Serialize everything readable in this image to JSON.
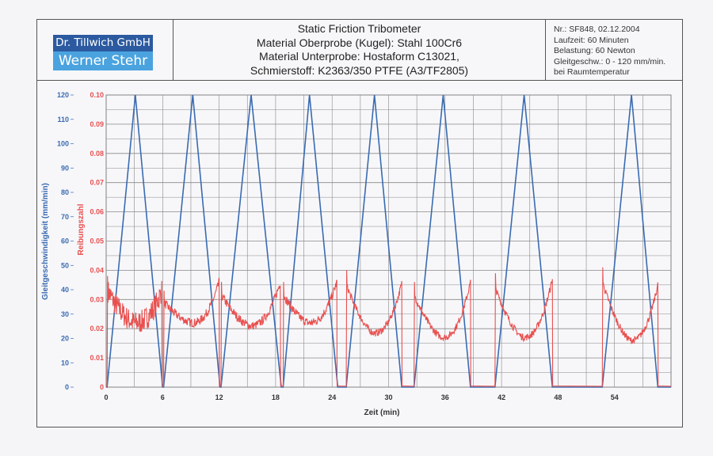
{
  "header": {
    "logo_line1": "Dr. Tillwich GmbH",
    "logo_line2": "Werner Stehr",
    "title_lines": [
      "Static Friction Tribometer",
      "Material Oberprobe (Kugel): Stahl 100Cr6",
      "Material Unterprobe: Hostaform C13021,",
      "Schmierstoff: K2363/350 PTFE (A3/TF2805)"
    ],
    "info_lines": [
      "Nr.: SF848, 02.12.2004",
      "Laufzeit: 60 Minuten",
      "Belastung: 60 Newton",
      "Gleitgeschw.: 0 - 120 mm/min.",
      "bei Raumtemperatur"
    ]
  },
  "chart_data": {
    "type": "line",
    "xlabel": "Zeit (min)",
    "ylabel_left": "Gleitgeschwindigkeit (mm/min)",
    "ylabel_right": "Reibungszahl",
    "xlim": [
      0,
      60
    ],
    "ylim_left": [
      0,
      120
    ],
    "ylim_right": [
      0,
      0.1
    ],
    "x_ticks": [
      "0",
      "6",
      "12",
      "18",
      "24",
      "30",
      "36",
      "42",
      "48",
      "54"
    ],
    "x_tick_values": [
      0,
      6,
      12,
      18,
      24,
      30,
      36,
      42,
      48,
      54
    ],
    "y_left_ticks": [
      "0",
      "10",
      "20",
      "30",
      "40",
      "50",
      "60",
      "70",
      "80",
      "90",
      "100",
      "110",
      "120"
    ],
    "y_right_ticks": [
      "0",
      "0.01",
      "0.02",
      "0.03",
      "0.04",
      "0.05",
      "0.06",
      "0.07",
      "0.08",
      "0.09",
      "0.10"
    ],
    "grid": true,
    "colors": {
      "speed": "#3a6bb0",
      "friction": "#e8504f",
      "grid": "#888888"
    },
    "series": [
      {
        "name": "Gleitgeschwindigkeit",
        "axis": "left",
        "x": [
          0,
          0.1,
          3.1,
          6.0,
          6.1,
          9.2,
          12.1,
          12.2,
          15.4,
          18.6,
          18.8,
          21.6,
          24.6,
          25.5,
          28.5,
          31.4,
          32.7,
          35.8,
          38.7,
          41.3,
          44.4,
          47.4,
          52.7,
          55.8,
          58.6,
          60
        ],
        "y": [
          0,
          0,
          120,
          0,
          0,
          120,
          0,
          0,
          120,
          0,
          0,
          120,
          0,
          0,
          120,
          0,
          0,
          120,
          0,
          0,
          120,
          0,
          0,
          120,
          0,
          0
        ]
      },
      {
        "name": "Reibungszahl",
        "axis": "right",
        "cycles": [
          {
            "start": 0.1,
            "min_at": 3.1,
            "end": 5.9,
            "peak_start": 0.038,
            "min": 0.022,
            "peak_end": 0.033,
            "noise": 0.004
          },
          {
            "start": 6.1,
            "min_at": 9.2,
            "end": 12.0,
            "peak_start": 0.033,
            "min": 0.022,
            "peak_end": 0.036,
            "noise": 0.0015
          },
          {
            "start": 12.2,
            "min_at": 15.4,
            "end": 18.5,
            "peak_start": 0.036,
            "min": 0.021,
            "peak_end": 0.036,
            "noise": 0.0015
          },
          {
            "start": 18.8,
            "min_at": 21.6,
            "end": 24.5,
            "peak_start": 0.036,
            "min": 0.022,
            "peak_end": 0.036,
            "noise": 0.0015
          },
          {
            "start": 25.5,
            "min_at": 28.5,
            "end": 31.4,
            "peak_start": 0.04,
            "min": 0.0185,
            "peak_end": 0.0355,
            "noise": 0.0012
          },
          {
            "start": 32.7,
            "min_at": 35.8,
            "end": 38.7,
            "peak_start": 0.036,
            "min": 0.017,
            "peak_end": 0.036,
            "noise": 0.0012
          },
          {
            "start": 41.3,
            "min_at": 44.4,
            "end": 47.4,
            "peak_start": 0.039,
            "min": 0.017,
            "peak_end": 0.037,
            "noise": 0.0012
          },
          {
            "start": 52.7,
            "min_at": 55.8,
            "end": 58.6,
            "peak_start": 0.041,
            "min": 0.016,
            "peak_end": 0.035,
            "noise": 0.0012
          }
        ]
      }
    ]
  }
}
